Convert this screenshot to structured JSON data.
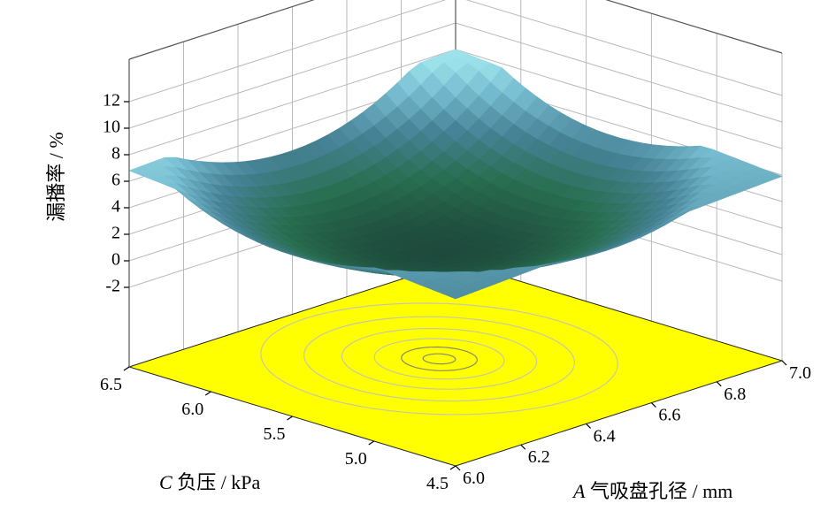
{
  "chart_data": {
    "type": "surface3d",
    "zlabel": "漏播率 / %",
    "zticks": [
      "-2",
      "0",
      "2",
      "4",
      "6",
      "8",
      "10",
      "12"
    ],
    "zlim": [
      -2,
      12
    ],
    "xlabel_italic": "A",
    "xlabel": " 气吸盘孔径 / mm",
    "xticks": [
      "6.0",
      "6.2",
      "6.4",
      "6.6",
      "6.8",
      "7.0"
    ],
    "xlim": [
      6.0,
      7.0
    ],
    "ylabel_italic": "C",
    "ylabel": " 负压 / kPa",
    "yticks": [
      "4.5",
      "5.0",
      "5.5",
      "6.0",
      "6.5"
    ],
    "ylim": [
      4.5,
      6.5
    ],
    "surface_corners": [
      {
        "A": 6.0,
        "C": 4.5,
        "z": 4.6
      },
      {
        "A": 7.0,
        "C": 4.5,
        "z": 5.9
      },
      {
        "A": 6.0,
        "C": 6.5,
        "z": 6.8
      },
      {
        "A": 7.0,
        "C": 6.5,
        "z": 8.0
      }
    ],
    "minimum": {
      "A": 6.5,
      "C": 5.6,
      "z": 0.0
    },
    "floor_contours": true,
    "grid": true,
    "colors": {
      "floor": "#ffff00",
      "surface_low": "#1e4a3c",
      "surface_high": "#a8f0f4",
      "contour": "#c8c8a8"
    }
  }
}
